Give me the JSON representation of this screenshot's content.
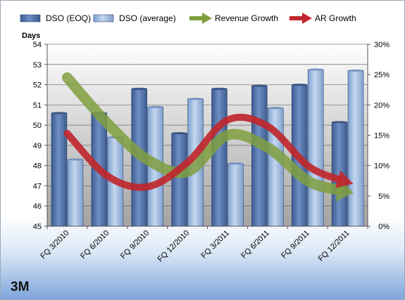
{
  "company": "3M",
  "chart_data": {
    "type": "bar",
    "categories": [
      "FQ 3/2010",
      "FQ 6/2010",
      "FQ 9/2010",
      "FQ 12/2010",
      "FQ 3/2011",
      "FQ 6/2011",
      "FQ 9/2011",
      "FQ 12/2011"
    ],
    "ylabel": "Days",
    "ylim": [
      45,
      54
    ],
    "y_ticks": [
      "45",
      "46",
      "47",
      "48",
      "49",
      "50",
      "51",
      "52",
      "53",
      "54"
    ],
    "y2lim": [
      0,
      30
    ],
    "y2_ticks": [
      "0%",
      "5%",
      "10%",
      "15%",
      "20%",
      "25%",
      "30%"
    ],
    "grid": true,
    "legend_position": "top",
    "series": [
      {
        "name": "DSO (EOQ)",
        "kind": "bar",
        "color": "#4e6fa5",
        "values": [
          50.6,
          50.6,
          51.8,
          49.6,
          51.8,
          51.95,
          52.0,
          50.15
        ]
      },
      {
        "name": "DSO (average)",
        "kind": "bar",
        "color": "#93b4dd",
        "values": [
          48.3,
          49.4,
          50.9,
          51.3,
          48.1,
          50.85,
          52.75,
          52.7
        ]
      },
      {
        "name": "Revenue Growth",
        "kind": "line-arrow",
        "axis": "secondary",
        "color": "#7f9f3f",
        "values": [
          24.5,
          17.0,
          11.0,
          9.0,
          15.0,
          13.0,
          7.5,
          5.5
        ]
      },
      {
        "name": "AR Growth",
        "kind": "line-arrow",
        "axis": "secondary",
        "color": "#c0272d",
        "values": [
          15.3,
          8.3,
          6.5,
          10.5,
          17.5,
          16.5,
          10.0,
          7.0
        ]
      }
    ]
  }
}
